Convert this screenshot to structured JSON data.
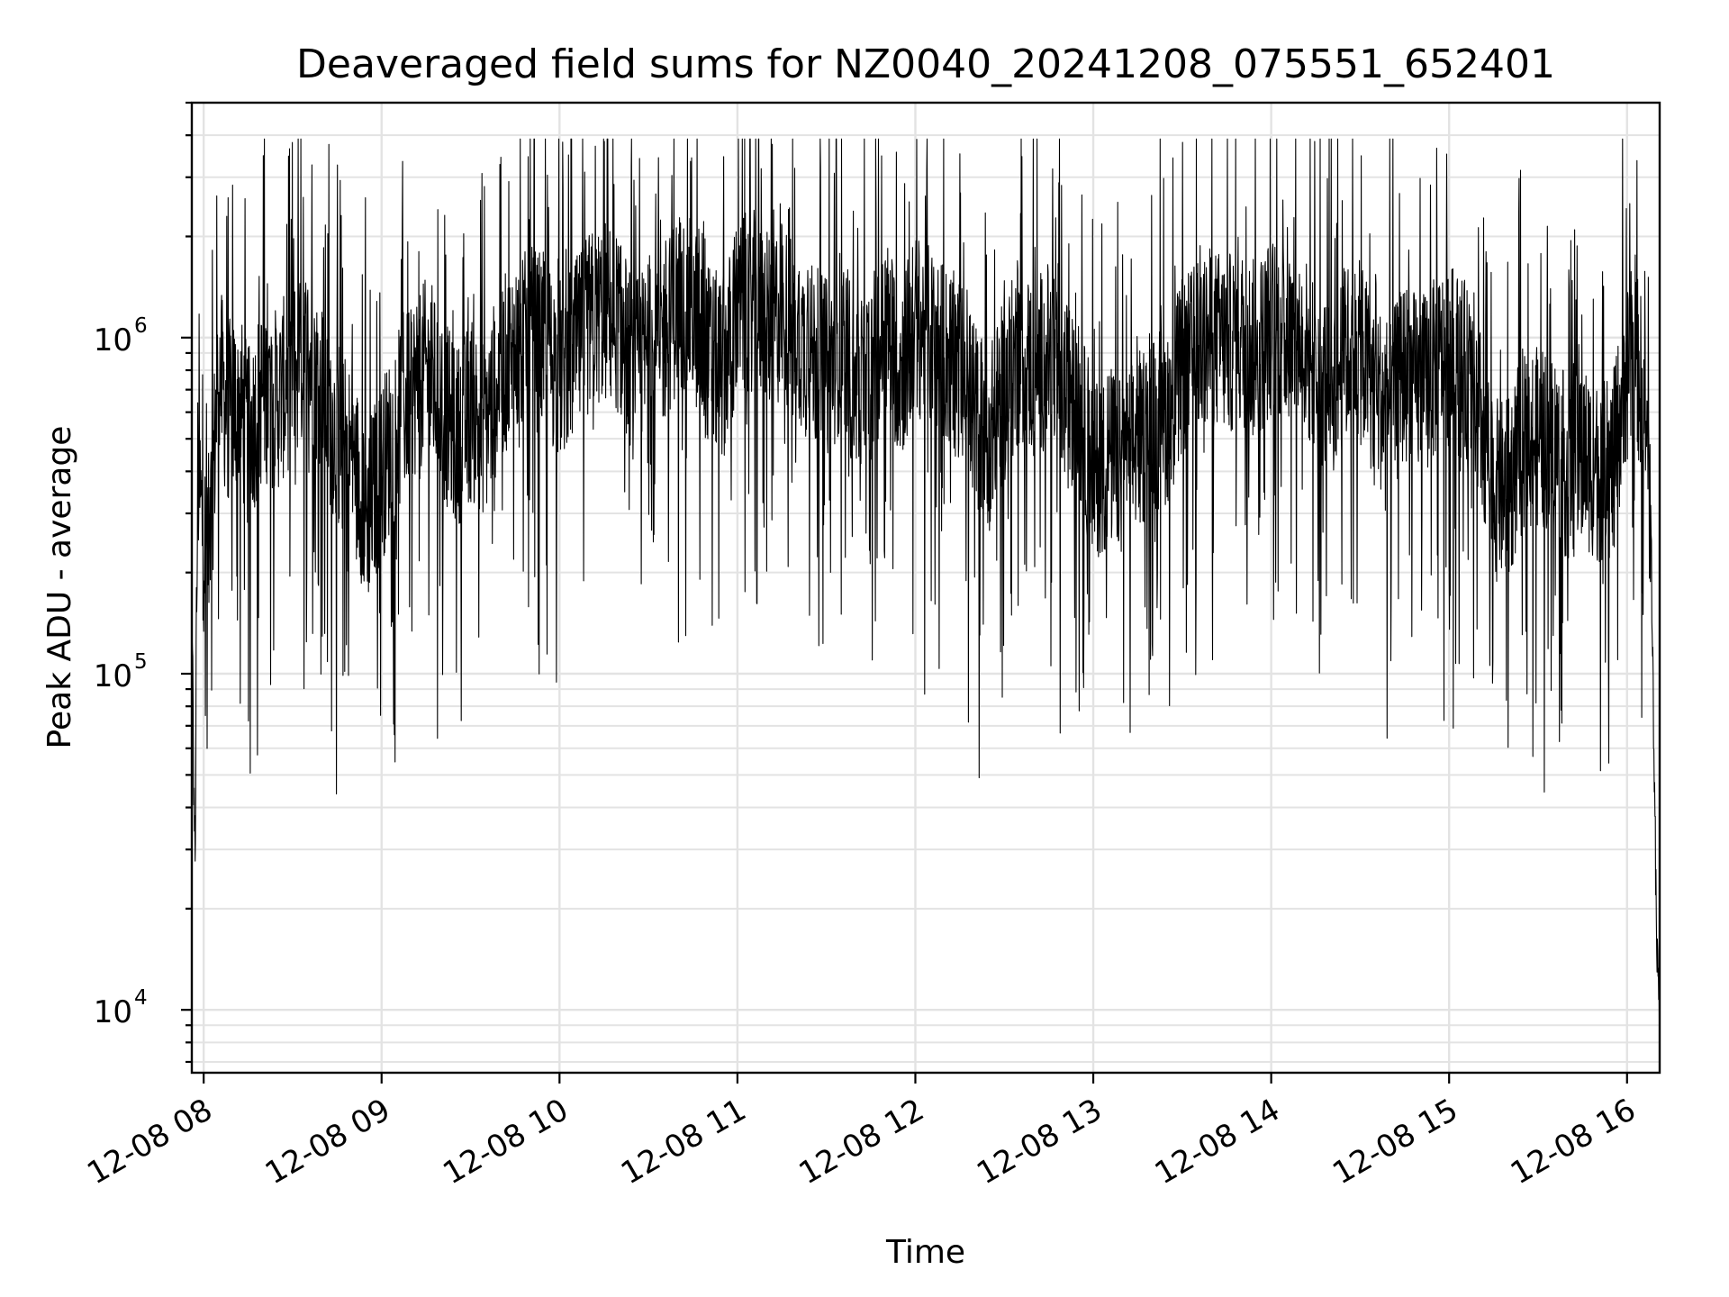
{
  "chart_data": {
    "type": "line",
    "title": "Deaveraged field sums for NZ0040_20241208_075551_652401",
    "xlabel": "Time",
    "ylabel": "Peak ADU - average",
    "yscale": "log",
    "xlim": [
      "2024-12-08 07:56",
      "2024-12-08 16:11"
    ],
    "ylim": [
      6500,
      5000000
    ],
    "x_ticks": [
      {
        "value": "2024-12-08 08:00",
        "label": "12-08 08"
      },
      {
        "value": "2024-12-08 09:00",
        "label": "12-08 09"
      },
      {
        "value": "2024-12-08 10:00",
        "label": "12-08 10"
      },
      {
        "value": "2024-12-08 11:00",
        "label": "12-08 11"
      },
      {
        "value": "2024-12-08 12:00",
        "label": "12-08 12"
      },
      {
        "value": "2024-12-08 13:00",
        "label": "12-08 13"
      },
      {
        "value": "2024-12-08 14:00",
        "label": "12-08 14"
      },
      {
        "value": "2024-12-08 15:00",
        "label": "12-08 15"
      },
      {
        "value": "2024-12-08 16:00",
        "label": "12-08 16"
      }
    ],
    "y_ticks": [
      {
        "value": 10000,
        "base": "10",
        "exp": "4"
      },
      {
        "value": 100000,
        "base": "10",
        "exp": "5"
      },
      {
        "value": 1000000,
        "base": "10",
        "exp": "6"
      }
    ],
    "grid": true,
    "legend": "none",
    "line_color": "#000000",
    "series": [
      {
        "x": [
          "2024-12-08 07:56",
          "2024-12-08 07:57",
          "2024-12-08 07:58",
          "2024-12-08 08:00",
          "2024-12-08 08:02",
          "2024-12-08 08:05",
          "2024-12-08 08:08",
          "2024-12-08 08:12",
          "2024-12-08 08:15",
          "2024-12-08 08:20",
          "2024-12-08 08:25",
          "2024-12-08 08:30",
          "2024-12-08 08:35",
          "2024-12-08 08:40",
          "2024-12-08 08:45",
          "2024-12-08 08:50",
          "2024-12-08 08:55",
          "2024-12-08 09:00",
          "2024-12-08 09:05",
          "2024-12-08 09:10",
          "2024-12-08 09:15",
          "2024-12-08 09:20",
          "2024-12-08 09:25",
          "2024-12-08 09:30",
          "2024-12-08 09:35",
          "2024-12-08 09:40",
          "2024-12-08 09:45",
          "2024-12-08 09:50",
          "2024-12-08 09:55",
          "2024-12-08 10:00",
          "2024-12-08 10:05",
          "2024-12-08 10:10",
          "2024-12-08 10:15",
          "2024-12-08 10:20",
          "2024-12-08 10:25",
          "2024-12-08 10:30",
          "2024-12-08 10:35",
          "2024-12-08 10:40",
          "2024-12-08 10:45",
          "2024-12-08 10:50",
          "2024-12-08 10:55",
          "2024-12-08 11:00",
          "2024-12-08 11:05",
          "2024-12-08 11:10",
          "2024-12-08 11:15",
          "2024-12-08 11:20",
          "2024-12-08 11:25",
          "2024-12-08 11:30",
          "2024-12-08 11:35",
          "2024-12-08 11:40",
          "2024-12-08 11:45",
          "2024-12-08 11:50",
          "2024-12-08 11:55",
          "2024-12-08 12:00",
          "2024-12-08 12:05",
          "2024-12-08 12:10",
          "2024-12-08 12:15",
          "2024-12-08 12:20",
          "2024-12-08 12:25",
          "2024-12-08 12:30",
          "2024-12-08 12:35",
          "2024-12-08 12:40",
          "2024-12-08 12:45",
          "2024-12-08 12:50",
          "2024-12-08 12:55",
          "2024-12-08 13:00",
          "2024-12-08 13:05",
          "2024-12-08 13:10",
          "2024-12-08 13:15",
          "2024-12-08 13:20",
          "2024-12-08 13:25",
          "2024-12-08 13:30",
          "2024-12-08 13:35",
          "2024-12-08 13:40",
          "2024-12-08 13:45",
          "2024-12-08 13:50",
          "2024-12-08 13:55",
          "2024-12-08 14:00",
          "2024-12-08 14:05",
          "2024-12-08 14:10",
          "2024-12-08 14:15",
          "2024-12-08 14:20",
          "2024-12-08 14:25",
          "2024-12-08 14:30",
          "2024-12-08 14:35",
          "2024-12-08 14:40",
          "2024-12-08 14:45",
          "2024-12-08 14:50",
          "2024-12-08 14:55",
          "2024-12-08 15:00",
          "2024-12-08 15:05",
          "2024-12-08 15:10",
          "2024-12-08 15:15",
          "2024-12-08 15:20",
          "2024-12-08 15:25",
          "2024-12-08 15:30",
          "2024-12-08 15:35",
          "2024-12-08 15:40",
          "2024-12-08 15:45",
          "2024-12-08 15:50",
          "2024-12-08 15:55",
          "2024-12-08 16:00",
          "2024-12-08 16:03",
          "2024-12-08 16:06",
          "2024-12-08 16:08",
          "2024-12-08 16:10",
          "2024-12-08 16:11"
        ],
        "y": [
          170000,
          25000,
          400000,
          250000,
          240000,
          800000,
          600000,
          650000,
          500000,
          700000,
          650000,
          800000,
          900000,
          700000,
          500000,
          450000,
          300000,
          400000,
          550000,
          700000,
          800000,
          650000,
          500000,
          600000,
          550000,
          800000,
          900000,
          1000000,
          950000,
          800000,
          900000,
          1100000,
          1200000,
          1100000,
          800000,
          900000,
          1000000,
          1300000,
          1200000,
          900000,
          800000,
          1200000,
          1300000,
          1100000,
          1200000,
          1000000,
          900000,
          800000,
          1000000,
          700000,
          800000,
          1100000,
          800000,
          1100000,
          1000000,
          900000,
          800000,
          600000,
          500000,
          700000,
          900000,
          800000,
          900000,
          700000,
          600000,
          400000,
          450000,
          400000,
          500000,
          550000,
          600000,
          800000,
          900000,
          1000000,
          950000,
          1000000,
          900000,
          1100000,
          1000000,
          1000000,
          800000,
          700000,
          900000,
          900000,
          700000,
          600000,
          800000,
          700000,
          800000,
          900000,
          800000,
          600000,
          350000,
          350000,
          500000,
          500000,
          500000,
          400000,
          450000,
          400000,
          400000,
          800000,
          900000,
          600000,
          300000,
          15000,
          10000
        ]
      }
    ]
  }
}
